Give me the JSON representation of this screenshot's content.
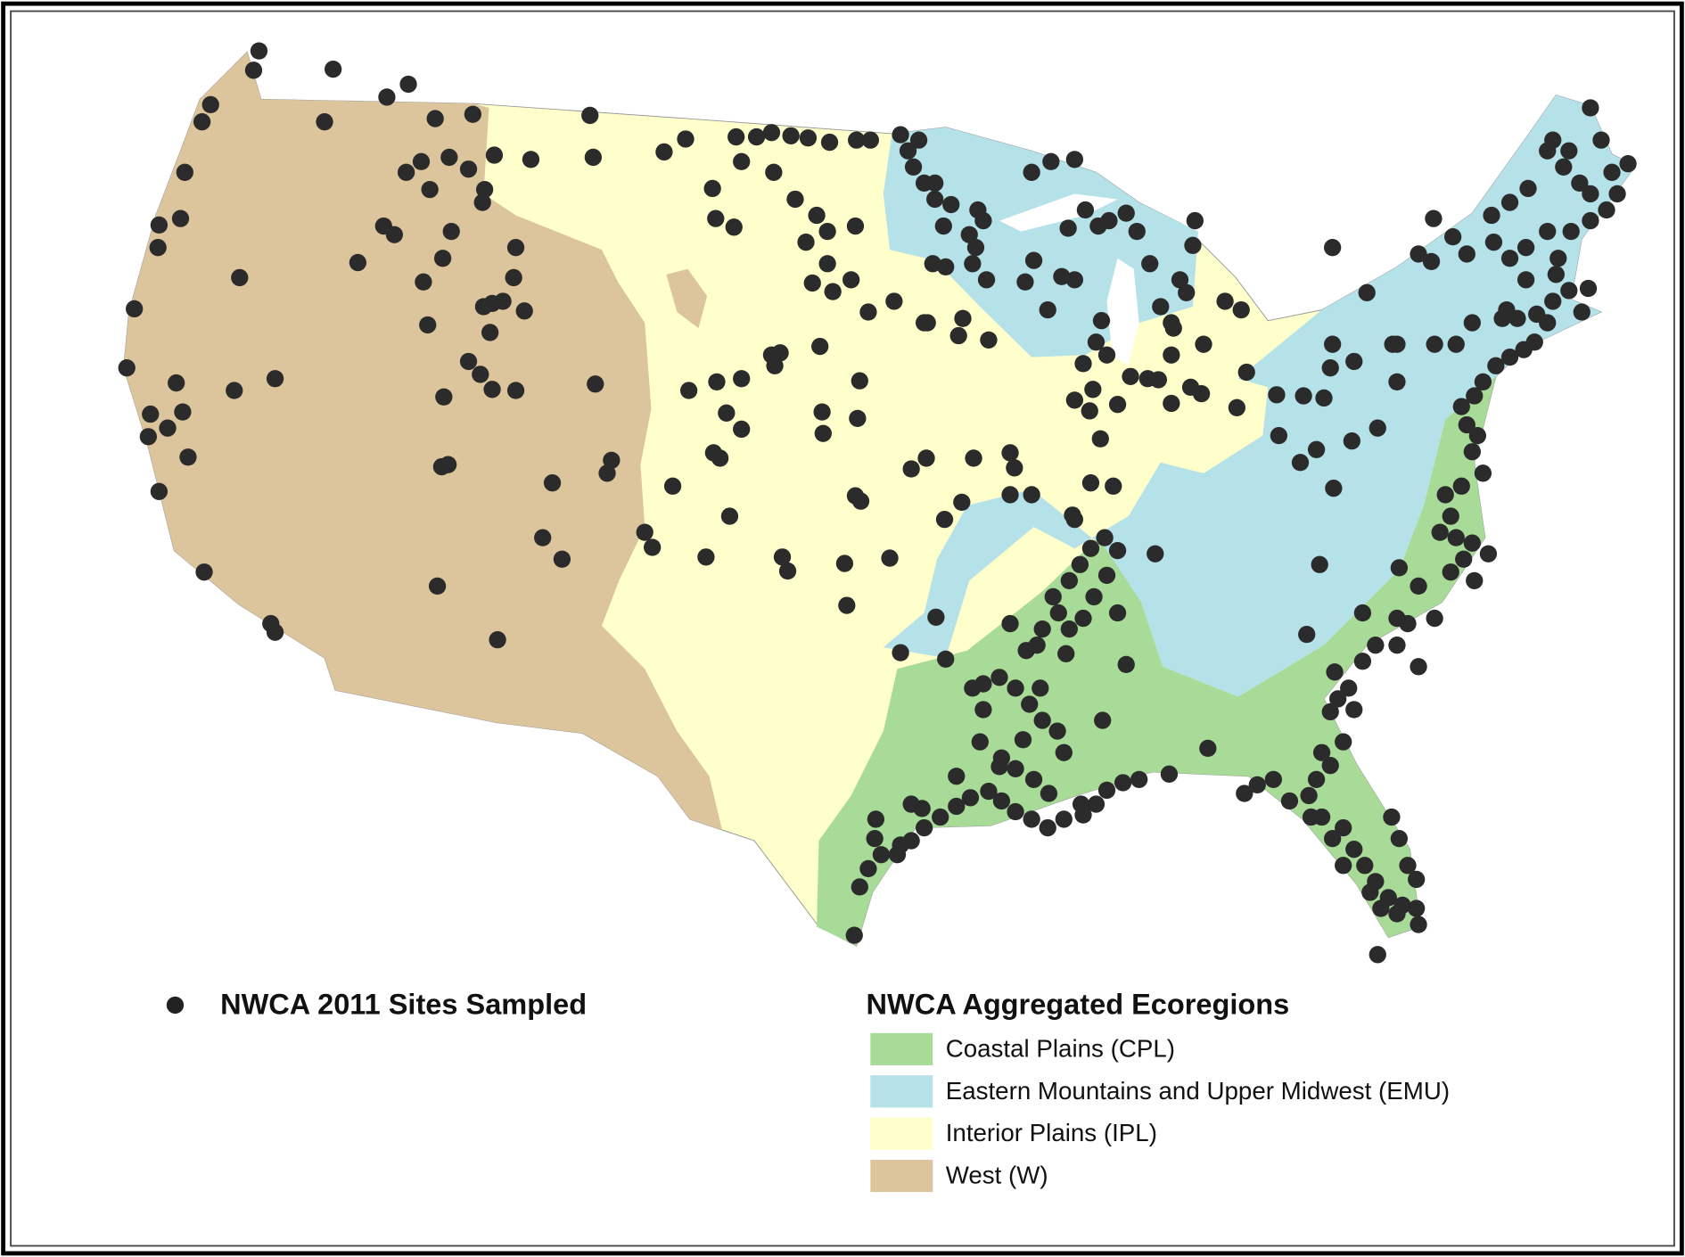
{
  "legend": {
    "sites_label": "NWCA 2011 Sites Sampled",
    "ecoregions_title": "NWCA Aggregated Ecoregions",
    "items": [
      {
        "label": "Coastal Plains (CPL)",
        "color": "#a9db98"
      },
      {
        "label": "Eastern Mountains and Upper Midwest (EMU)",
        "color": "#b5e1e8"
      },
      {
        "label": "Interior Plains (IPL)",
        "color": "#ffffcc"
      },
      {
        "label": "West (W)",
        "color": "#dcc59c"
      }
    ]
  }
}
